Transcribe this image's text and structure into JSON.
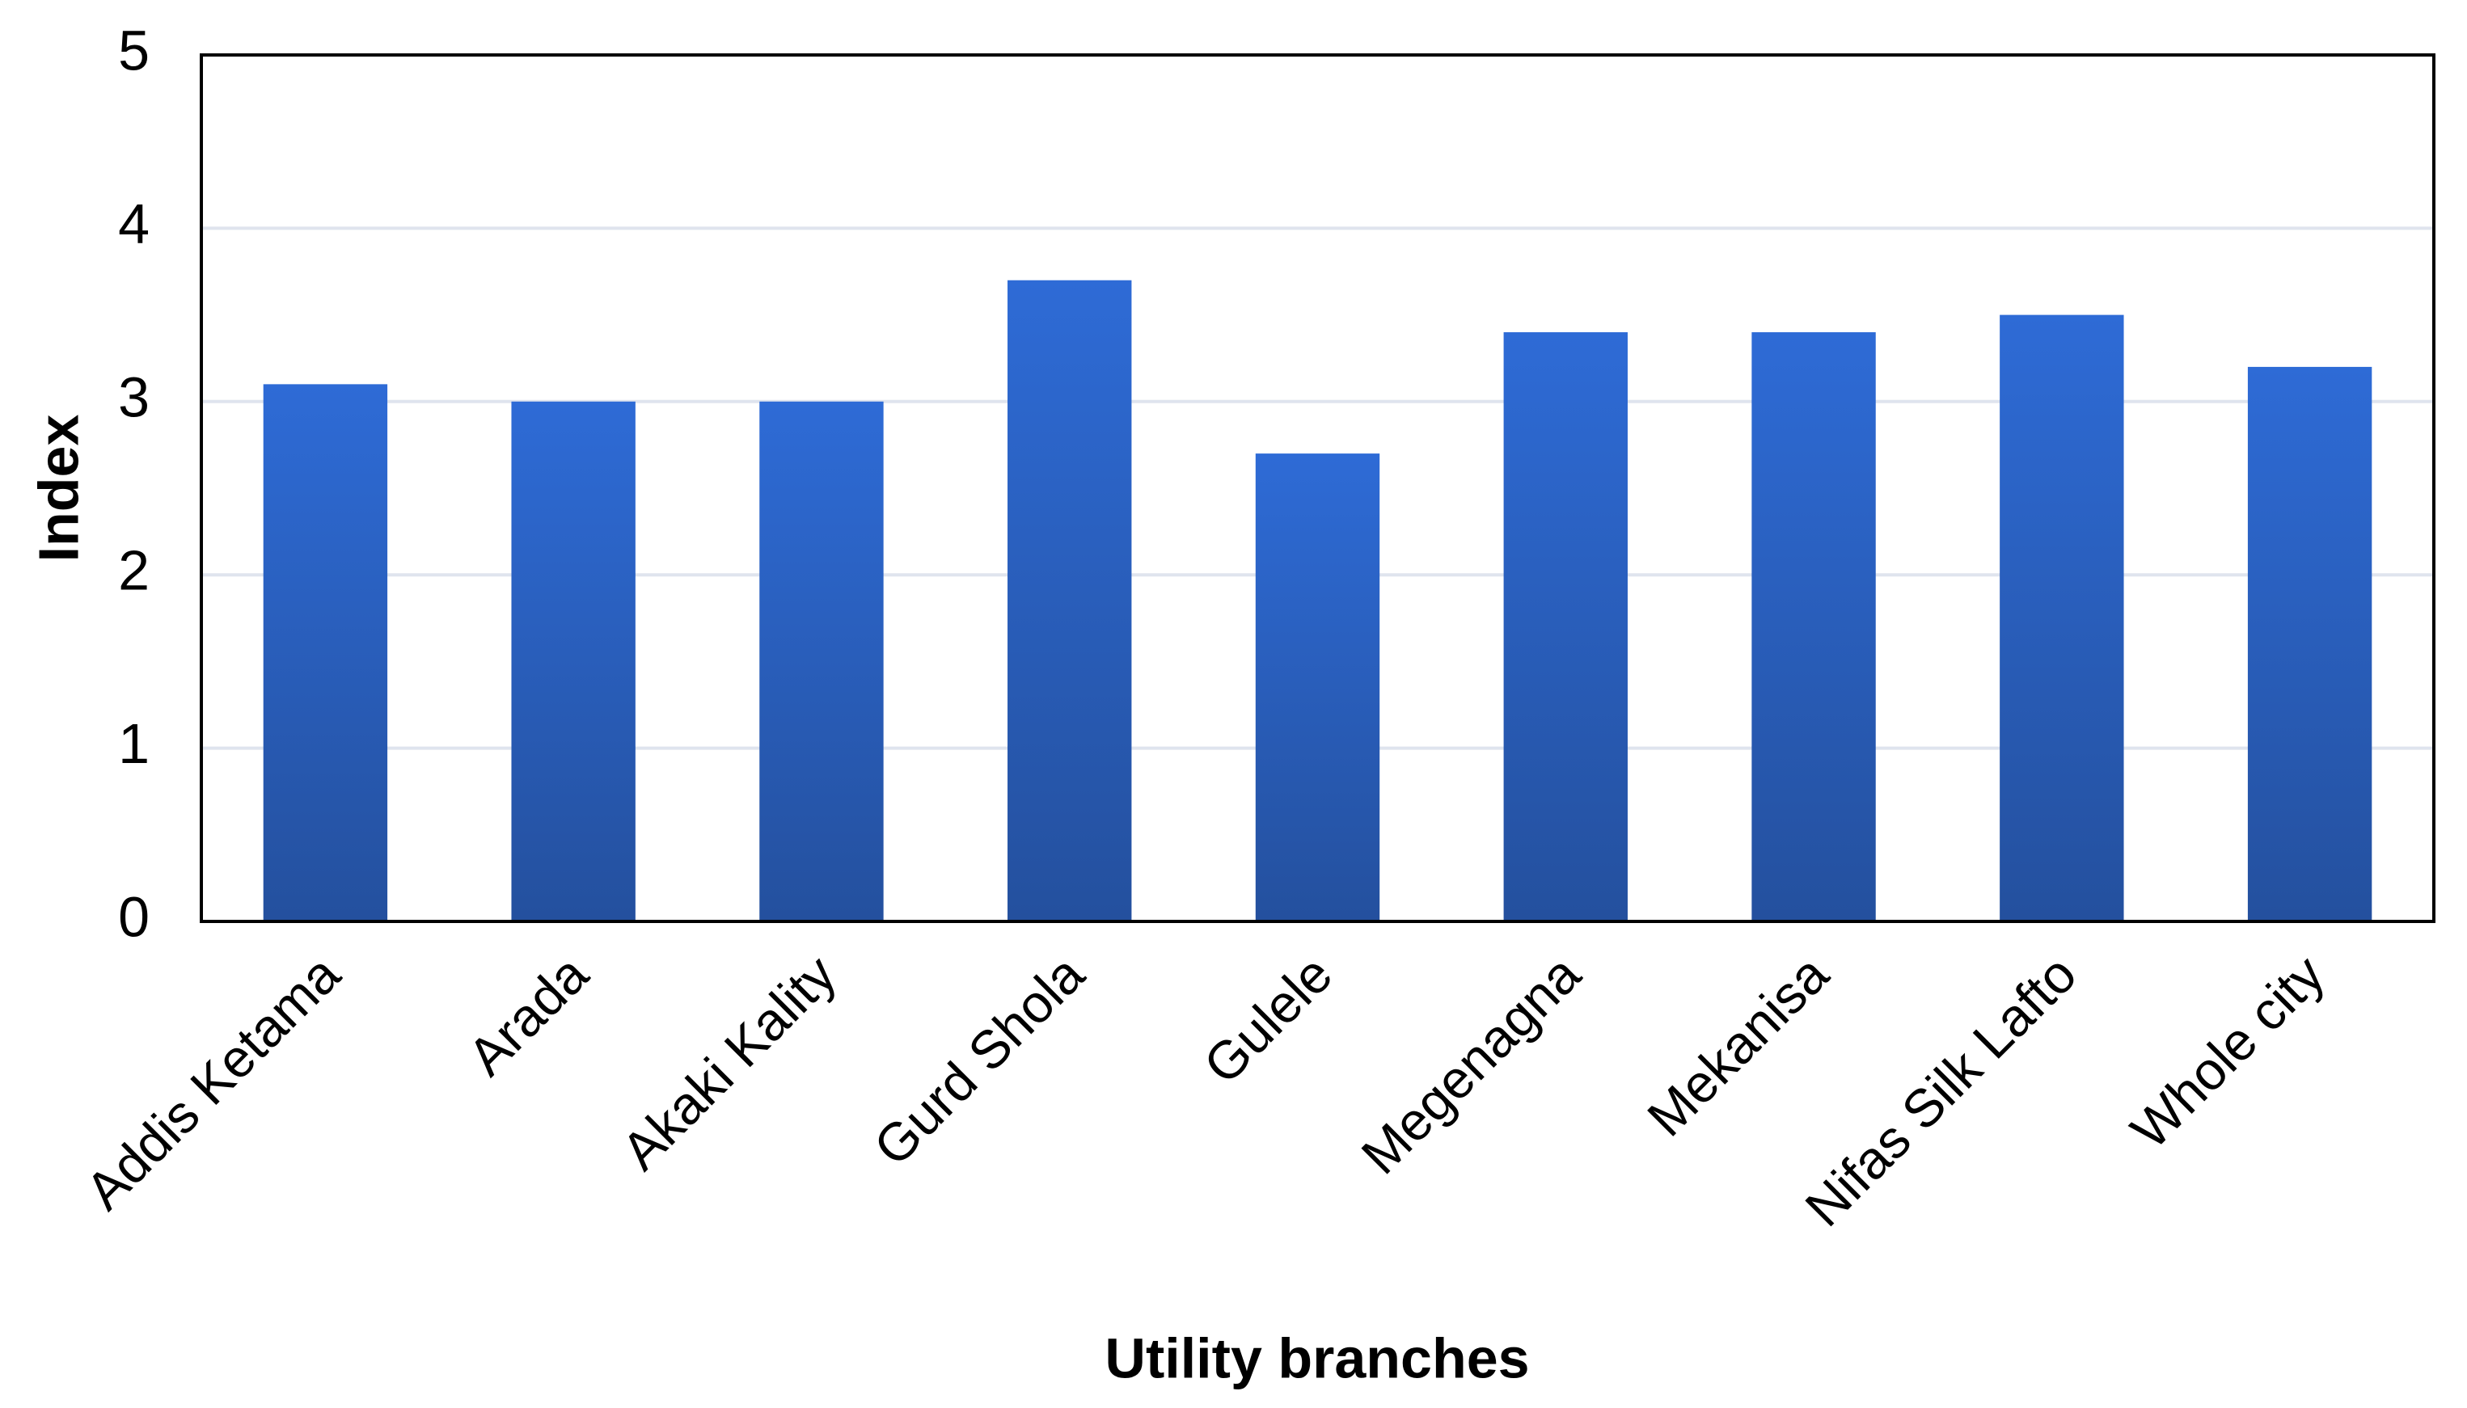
{
  "chart_data": {
    "type": "bar",
    "x_label": "Utility branches",
    "y_label": "Index",
    "categories": [
      "Addis Ketama",
      "Arada",
      "Akaki Kality",
      "Gurd Shola",
      "Gulele",
      "Megenagna",
      "Mekanisa",
      "Nifas Silk Lafto",
      "Whole city"
    ],
    "values": [
      3.1,
      3.0,
      3.0,
      3.7,
      2.7,
      3.4,
      3.4,
      3.5,
      3.2
    ],
    "color": "#2e6bd6",
    "ylim": [
      0,
      5
    ],
    "yticks": [
      0,
      1,
      2,
      3,
      4,
      5
    ],
    "grid": true
  }
}
